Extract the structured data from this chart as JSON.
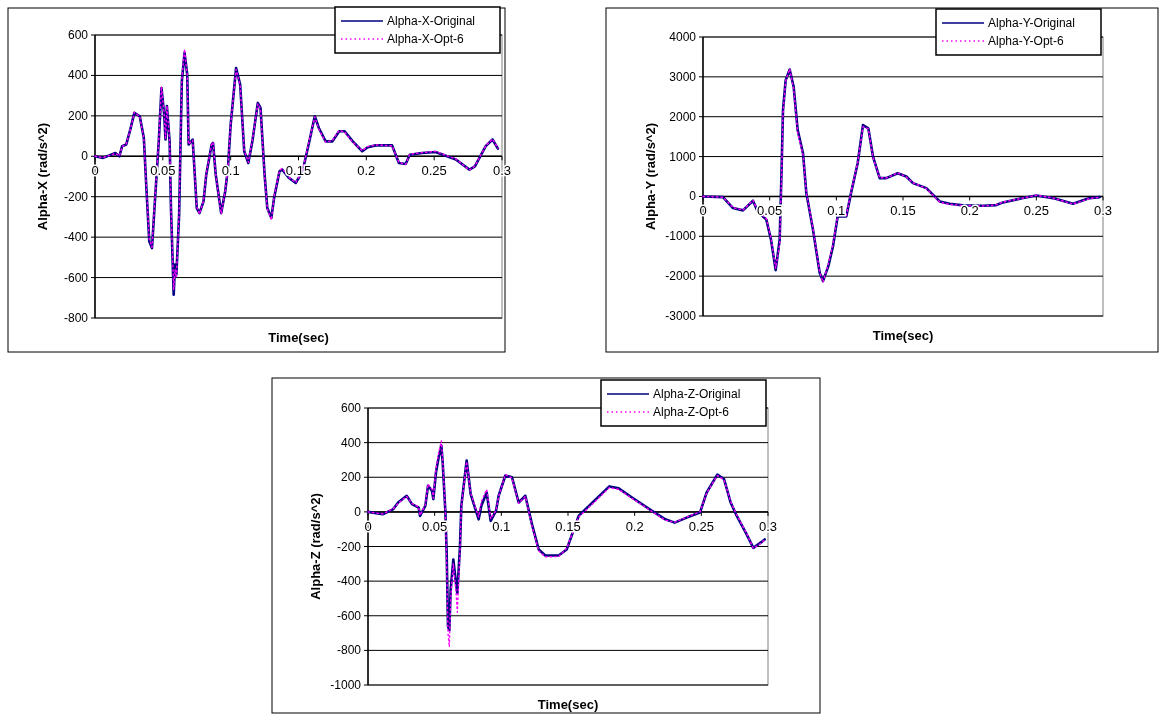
{
  "chart_data": [
    {
      "type": "line",
      "xlabel": "Time(sec)",
      "ylabel": "Alpha-X (rad/s^2)",
      "xlim": [
        0,
        0.3
      ],
      "xticks": [
        0,
        0.05,
        0.1,
        0.15,
        0.2,
        0.25,
        0.3
      ],
      "ylim": [
        -800,
        600
      ],
      "yticks": [
        -800,
        -600,
        -400,
        -200,
        0,
        200,
        400,
        600
      ],
      "grid": "y",
      "legend": "top right",
      "x": [
        0,
        0.006,
        0.015,
        0.018,
        0.02,
        0.023,
        0.026,
        0.029,
        0.033,
        0.036,
        0.038,
        0.04,
        0.042,
        0.044,
        0.047,
        0.049,
        0.051,
        0.052,
        0.053,
        0.055,
        0.056,
        0.058,
        0.059,
        0.06,
        0.062,
        0.064,
        0.066,
        0.068,
        0.069,
        0.072,
        0.075,
        0.077,
        0.08,
        0.082,
        0.086,
        0.087,
        0.089,
        0.093,
        0.096,
        0.098,
        0.1,
        0.104,
        0.107,
        0.11,
        0.113,
        0.116,
        0.12,
        0.122,
        0.125,
        0.127,
        0.13,
        0.132,
        0.136,
        0.138,
        0.143,
        0.148,
        0.153,
        0.158,
        0.162,
        0.165,
        0.17,
        0.175,
        0.18,
        0.184,
        0.19,
        0.197,
        0.201,
        0.207,
        0.219,
        0.224,
        0.229,
        0.232,
        0.241,
        0.251,
        0.266,
        0.276,
        0.28,
        0.288,
        0.293,
        0.297
      ],
      "series": [
        {
          "name": "Alpha-X-Original",
          "color": "#000080",
          "line_style": "solid",
          "values": [
            0,
            -8,
            16,
            0,
            50,
            58,
            132,
            215,
            198,
            91,
            -173,
            -420,
            -454,
            -239,
            74,
            338,
            206,
            83,
            248,
            74,
            -256,
            -685,
            -536,
            -586,
            -289,
            371,
            512,
            404,
            58,
            83,
            -256,
            -281,
            -223,
            -91,
            58,
            66,
            -91,
            -281,
            -173,
            -58,
            157,
            437,
            355,
            25,
            -33,
            74,
            264,
            240,
            -91,
            -256,
            -305,
            -206,
            -74,
            -66,
            -107,
            -132,
            -74,
            74,
            198,
            140,
            74,
            74,
            124,
            124,
            74,
            25,
            45,
            54,
            54,
            -33,
            -38,
            8,
            16,
            21,
            -16,
            -66,
            -50,
            50,
            83,
            38
          ]
        },
        {
          "name": "Alpha-X-Opt-6",
          "color": "#ff00ff",
          "line_style": "dotted",
          "values": [
            0,
            -6,
            14,
            2,
            48,
            60,
            130,
            218,
            196,
            88,
            -170,
            -410,
            -450,
            -230,
            80,
            345,
            210,
            90,
            250,
            80,
            -250,
            -660,
            -560,
            -600,
            -280,
            380,
            530,
            400,
            60,
            80,
            -250,
            -285,
            -220,
            -85,
            60,
            70,
            -90,
            -285,
            -170,
            -55,
            160,
            430,
            350,
            30,
            -30,
            80,
            260,
            235,
            -95,
            -260,
            -315,
            -200,
            -70,
            -60,
            -105,
            -130,
            -70,
            80,
            195,
            135,
            70,
            78,
            128,
            120,
            70,
            28,
            48,
            56,
            52,
            -30,
            -40,
            10,
            18,
            24,
            -14,
            -68,
            -48,
            52,
            85,
            40
          ]
        }
      ]
    },
    {
      "type": "line",
      "xlabel": "Time(sec)",
      "ylabel": "Alpha-Y (rad/s^2)",
      "xlim": [
        0,
        0.3
      ],
      "xticks": [
        0,
        0.05,
        0.1,
        0.15,
        0.2,
        0.25,
        0.3
      ],
      "ylim": [
        -3000,
        4000
      ],
      "yticks": [
        -3000,
        -2000,
        -1000,
        0,
        1000,
        2000,
        3000,
        4000
      ],
      "grid": "y",
      "legend": "top right",
      "x": [
        0,
        0.015,
        0.0225,
        0.03,
        0.0375,
        0.041,
        0.0475,
        0.051,
        0.0545,
        0.0575,
        0.059,
        0.06,
        0.062,
        0.065,
        0.068,
        0.071,
        0.075,
        0.0775,
        0.0825,
        0.0875,
        0.09,
        0.094,
        0.0975,
        0.101,
        0.1075,
        0.111,
        0.116,
        0.12,
        0.124,
        0.1275,
        0.1325,
        0.1375,
        0.146,
        0.1525,
        0.1575,
        0.1675,
        0.1775,
        0.185,
        0.195,
        0.21,
        0.22,
        0.225,
        0.24,
        0.25,
        0.2625,
        0.2775,
        0.29,
        0.2975
      ],
      "series": [
        {
          "name": "Alpha-Y-Original",
          "color": "#000080",
          "line_style": "solid",
          "values": [
            0,
            -17,
            -292,
            -350,
            -108,
            -375,
            -583,
            -1083,
            -1850,
            -1083,
            750,
            2166,
            2916,
            3183,
            2750,
            1666,
            1083,
            83,
            -833,
            -1916,
            -2125,
            -1750,
            -1250,
            -500,
            -500,
            83,
            833,
            1791,
            1708,
            1000,
            458,
            458,
            583,
            500,
            333,
            208,
            -125,
            -183,
            -225,
            -233,
            -217,
            -150,
            -42,
            25,
            -42,
            -183,
            -42,
            -17
          ]
        },
        {
          "name": "Alpha-Y-Opt-6",
          "color": "#ff00ff",
          "line_style": "dotted",
          "values": [
            0,
            -20,
            -280,
            -340,
            -100,
            -360,
            -560,
            -1050,
            -1800,
            -1200,
            600,
            2100,
            2900,
            3200,
            2700,
            1600,
            1050,
            100,
            -800,
            -1900,
            -2150,
            -1700,
            -1200,
            -480,
            -480,
            100,
            850,
            1750,
            1700,
            980,
            470,
            460,
            590,
            490,
            340,
            200,
            -140,
            -200,
            -230,
            -240,
            -210,
            -140,
            -40,
            30,
            -40,
            -190,
            -50,
            -20
          ]
        }
      ]
    },
    {
      "type": "line",
      "xlabel": "Time(sec)",
      "ylabel": "Alpha-Z (rad/s^2)",
      "xlim": [
        0,
        0.3
      ],
      "xticks": [
        0,
        0.05,
        0.1,
        0.15,
        0.2,
        0.25,
        0.3
      ],
      "ylim": [
        -1000,
        600
      ],
      "yticks": [
        -1000,
        -800,
        -600,
        -400,
        -200,
        0,
        200,
        400,
        600
      ],
      "grid": "y",
      "legend": "top right",
      "x": [
        0,
        0.011,
        0.019,
        0.0226,
        0.029,
        0.033,
        0.038,
        0.039,
        0.043,
        0.045,
        0.048,
        0.049,
        0.051,
        0.053,
        0.055,
        0.056,
        0.058,
        0.059,
        0.06,
        0.061,
        0.062,
        0.064,
        0.066,
        0.067,
        0.069,
        0.07,
        0.074,
        0.077,
        0.079,
        0.083,
        0.085,
        0.089,
        0.092,
        0.096,
        0.098,
        0.103,
        0.108,
        0.113,
        0.118,
        0.123,
        0.128,
        0.133,
        0.143,
        0.149,
        0.158,
        0.171,
        0.181,
        0.188,
        0.198,
        0.213,
        0.223,
        0.23,
        0.239,
        0.249,
        0.254,
        0.262,
        0.267,
        0.272,
        0.276,
        0.284,
        0.289,
        0.295,
        0.2975
      ],
      "series": [
        {
          "name": "Alpha-Z-Original",
          "color": "#000080",
          "line_style": "solid",
          "values": [
            0,
            -14,
            16,
            54,
            93,
            45,
            25,
            -23,
            35,
            151,
            122,
            74,
            229,
            316,
            384,
            287,
            6,
            -237,
            -663,
            -683,
            -450,
            -275,
            -411,
            -469,
            -198,
            35,
            297,
            103,
            54,
            -43,
            35,
            112,
            -52,
            6,
            93,
            210,
            200,
            54,
            93,
            -72,
            -217,
            -252,
            -252,
            -217,
            -23,
            74,
            147,
            136,
            83,
            6,
            -43,
            -62,
            -33,
            -4,
            112,
            215,
            190,
            54,
            -14,
            -130,
            -208,
            -175,
            -159
          ]
        },
        {
          "name": "Alpha-Z-Opt-6",
          "color": "#ff00ff",
          "line_style": "dotted",
          "values": [
            0,
            -12,
            18,
            50,
            90,
            48,
            28,
            -20,
            40,
            160,
            130,
            80,
            250,
            340,
            410,
            300,
            10,
            -300,
            -700,
            -780,
            -500,
            -300,
            -460,
            -580,
            -220,
            30,
            290,
            110,
            60,
            -30,
            60,
            130,
            -40,
            10,
            90,
            215,
            195,
            50,
            90,
            -80,
            -225,
            -260,
            -258,
            -210,
            -30,
            65,
            140,
            130,
            78,
            2,
            -48,
            -60,
            -30,
            0,
            110,
            210,
            185,
            60,
            -10,
            -125,
            -210,
            -180,
            -160
          ]
        }
      ]
    }
  ]
}
